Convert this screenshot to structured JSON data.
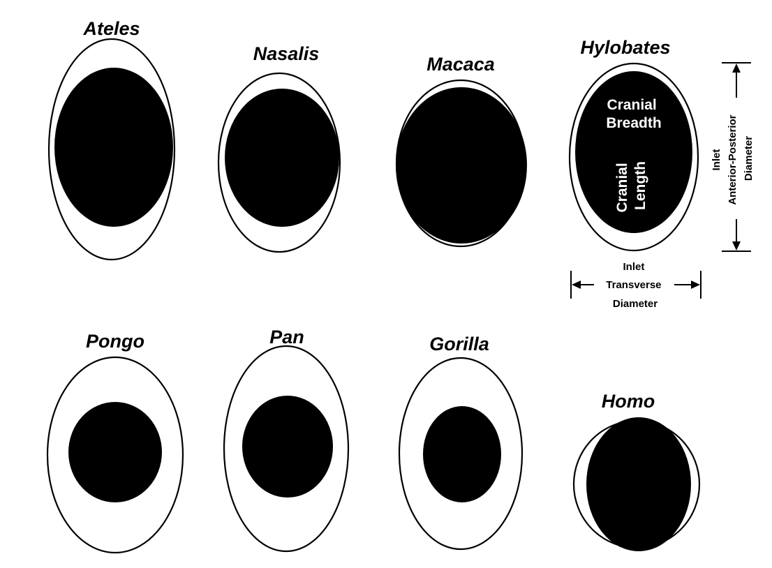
{
  "genera": [
    {
      "id": "ateles",
      "name": "Ateles"
    },
    {
      "id": "nasalis",
      "name": "Nasalis"
    },
    {
      "id": "macaca",
      "name": "Macaca"
    },
    {
      "id": "hylobates",
      "name": "Hylobates"
    },
    {
      "id": "pongo",
      "name": "Pongo"
    },
    {
      "id": "pan",
      "name": "Pan"
    },
    {
      "id": "gorilla",
      "name": "Gorilla"
    },
    {
      "id": "homo",
      "name": "Homo"
    }
  ],
  "key_labels": {
    "cranial_breadth_line1": "Cranial",
    "cranial_breadth_line2": "Breadth",
    "cranial_length_line1": "Cranial",
    "cranial_length_line2": "Length",
    "ap_line1": "Inlet",
    "ap_line2": "Anterior-Posterior",
    "ap_line3": "Diameter",
    "tr_line1": "Inlet",
    "tr_line2": "Transverse",
    "tr_line3": "Diameter"
  },
  "colors": {
    "inlet_fill": "#ffffff",
    "inlet_stroke": "#000000",
    "cranium_fill": "#000000",
    "background": "#ffffff"
  }
}
